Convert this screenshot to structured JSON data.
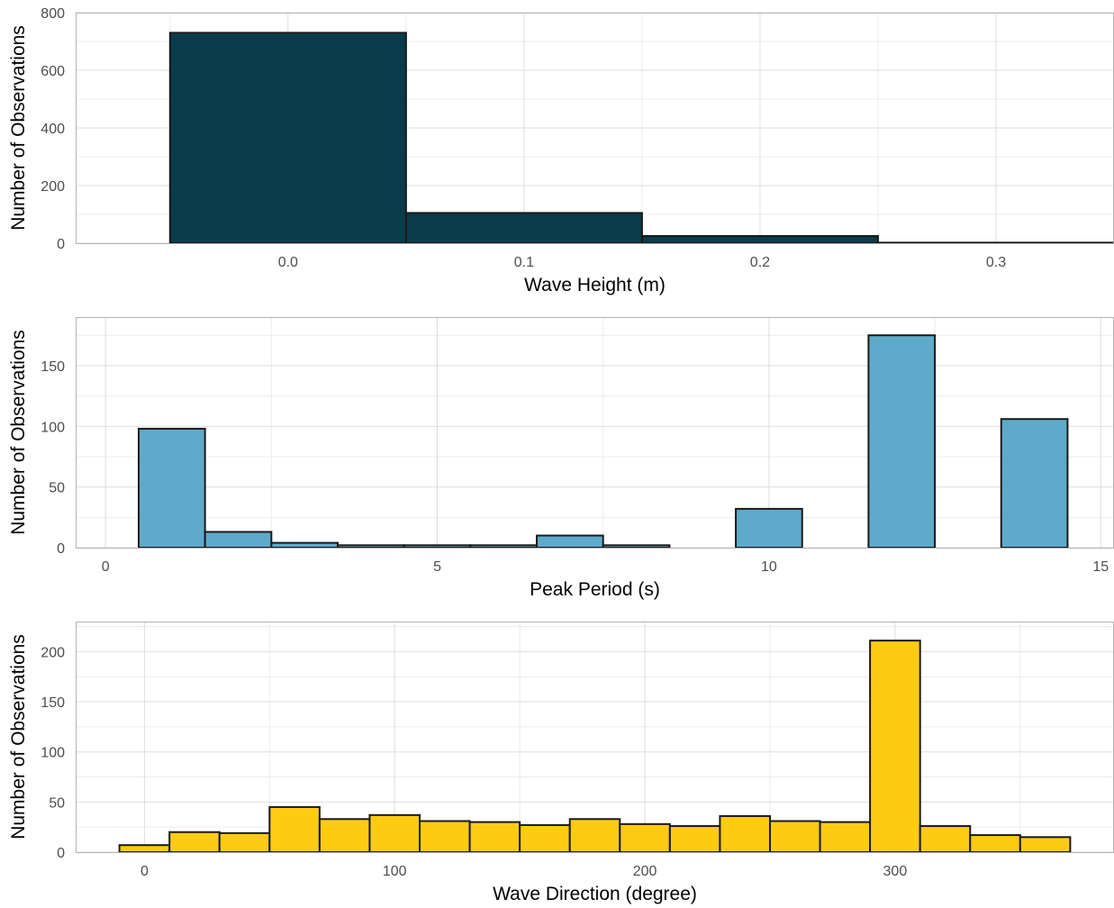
{
  "chart_data": [
    {
      "type": "bar",
      "name": "histogram-wave-height",
      "xlabel": "Wave Height (m)",
      "ylabel": "Number of Observations",
      "xlim": [
        -0.09,
        0.35
      ],
      "ylim": [
        0,
        800
      ],
      "x_ticks": [
        0.0,
        0.1,
        0.2,
        0.3
      ],
      "x_tick_labels": [
        "0.0",
        "0.1",
        "0.2",
        "0.3"
      ],
      "y_ticks": [
        0,
        200,
        400,
        600,
        800
      ],
      "y_tick_labels": [
        "0",
        "200",
        "400",
        "600",
        "800"
      ],
      "grid": true,
      "fill_color": "#093c4b",
      "bins": [
        {
          "x0": -0.05,
          "x1": 0.05,
          "count": 730
        },
        {
          "x0": 0.05,
          "x1": 0.15,
          "count": 105
        },
        {
          "x0": 0.15,
          "x1": 0.25,
          "count": 25
        },
        {
          "x0": 0.25,
          "x1": 0.35,
          "count": 2
        }
      ]
    },
    {
      "type": "bar",
      "name": "histogram-peak-period",
      "xlabel": "Peak Period (s)",
      "ylabel": "Number of Observations",
      "xlim": [
        -0.45,
        15.2
      ],
      "ylim": [
        0,
        190
      ],
      "x_ticks": [
        0,
        5,
        10,
        15
      ],
      "x_tick_labels": [
        "0",
        "5",
        "10",
        "15"
      ],
      "y_ticks": [
        0,
        50,
        100,
        150
      ],
      "y_tick_labels": [
        "0",
        "50",
        "100",
        "150"
      ],
      "grid": true,
      "fill_color": "#5eaaca",
      "bins": [
        {
          "x0": 0.5,
          "x1": 1.5,
          "count": 98
        },
        {
          "x0": 1.5,
          "x1": 2.5,
          "count": 13
        },
        {
          "x0": 2.5,
          "x1": 3.5,
          "count": 4
        },
        {
          "x0": 3.5,
          "x1": 4.5,
          "count": 2
        },
        {
          "x0": 4.5,
          "x1": 5.5,
          "count": 2
        },
        {
          "x0": 5.5,
          "x1": 6.5,
          "count": 2
        },
        {
          "x0": 6.5,
          "x1": 7.5,
          "count": 10
        },
        {
          "x0": 7.5,
          "x1": 8.5,
          "count": 2
        },
        {
          "x0": 9.5,
          "x1": 10.5,
          "count": 32
        },
        {
          "x0": 11.5,
          "x1": 12.5,
          "count": 175
        },
        {
          "x0": 13.5,
          "x1": 14.5,
          "count": 106
        }
      ]
    },
    {
      "type": "bar",
      "name": "histogram-wave-direction",
      "xlabel": "Wave Direction (degree)",
      "ylabel": "Number of Observations",
      "xlim": [
        -27.5,
        387.5
      ],
      "ylim": [
        0,
        230
      ],
      "x_ticks": [
        0,
        100,
        200,
        300
      ],
      "x_tick_labels": [
        "0",
        "100",
        "200",
        "300"
      ],
      "y_ticks": [
        0,
        50,
        100,
        150,
        200
      ],
      "y_tick_labels": [
        "0",
        "50",
        "100",
        "150",
        "200"
      ],
      "grid": true,
      "fill_color": "#fecb13",
      "bins": [
        {
          "x0": -10,
          "x1": 10,
          "count": 7
        },
        {
          "x0": 10,
          "x1": 30,
          "count": 20
        },
        {
          "x0": 30,
          "x1": 50,
          "count": 19
        },
        {
          "x0": 50,
          "x1": 70,
          "count": 45
        },
        {
          "x0": 70,
          "x1": 90,
          "count": 33
        },
        {
          "x0": 90,
          "x1": 110,
          "count": 37
        },
        {
          "x0": 110,
          "x1": 130,
          "count": 31
        },
        {
          "x0": 130,
          "x1": 150,
          "count": 30
        },
        {
          "x0": 150,
          "x1": 170,
          "count": 27
        },
        {
          "x0": 170,
          "x1": 190,
          "count": 33
        },
        {
          "x0": 190,
          "x1": 210,
          "count": 28
        },
        {
          "x0": 210,
          "x1": 230,
          "count": 26
        },
        {
          "x0": 230,
          "x1": 250,
          "count": 36
        },
        {
          "x0": 250,
          "x1": 270,
          "count": 31
        },
        {
          "x0": 270,
          "x1": 290,
          "count": 30
        },
        {
          "x0": 290,
          "x1": 310,
          "count": 211
        },
        {
          "x0": 310,
          "x1": 330,
          "count": 26
        },
        {
          "x0": 330,
          "x1": 350,
          "count": 17
        },
        {
          "x0": 350,
          "x1": 370,
          "count": 15
        }
      ]
    }
  ]
}
